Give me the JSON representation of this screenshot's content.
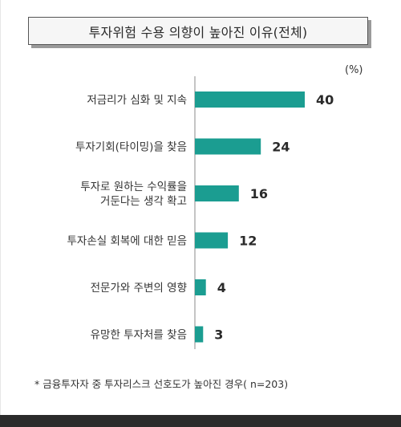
{
  "title": "투자위험 수용 의향이 높아진 이유(전체)",
  "unit_label": "(%)",
  "footnote": "* 금융투자자 중 투자리스크 선호도가 높아진 경우( n=203)",
  "chart_data": {
    "type": "bar",
    "orientation": "horizontal",
    "categories": [
      [
        "저금리가 심화 및 지속"
      ],
      [
        "투자기회(타이밍)을 찾음"
      ],
      [
        "투자로 원하는 수익률을",
        "거둔다는 생각 확고"
      ],
      [
        "투자손실 회복에 대한 믿음"
      ],
      [
        "전문가와 주변의 영향"
      ],
      [
        "유망한 투자처를 찾음"
      ]
    ],
    "values": [
      40,
      24,
      16,
      12,
      4,
      3
    ],
    "unit": "%",
    "xlim": [
      0,
      40
    ],
    "bar_color": "#1b9d91",
    "axis_color": "#8a8a8a",
    "grid": false,
    "legend": "none"
  }
}
